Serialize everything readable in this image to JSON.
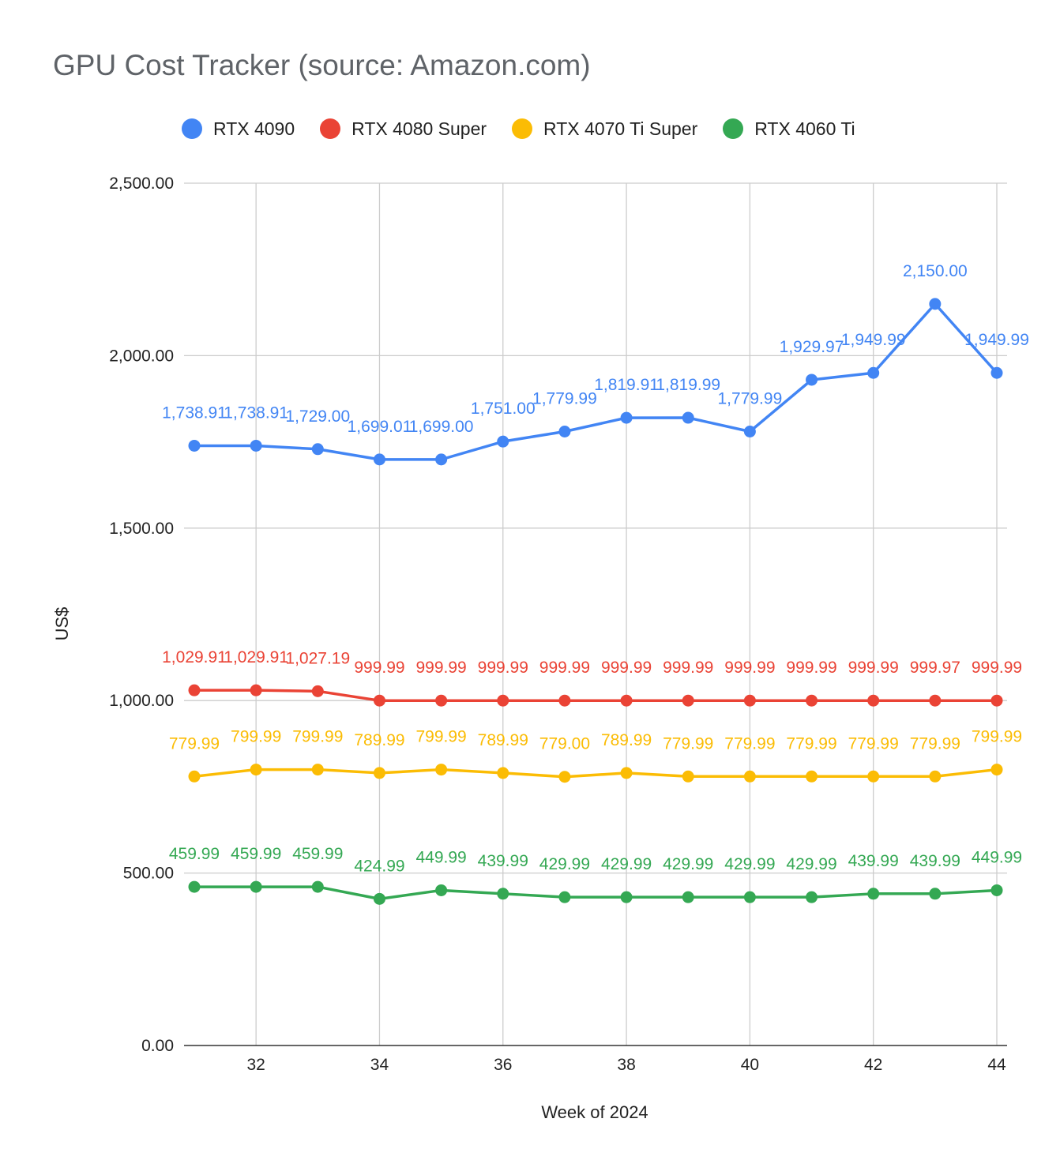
{
  "chart_data": {
    "type": "line",
    "title": "GPU Cost Tracker (source: Amazon.com)",
    "xlabel": "Week of 2024",
    "ylabel": "US$",
    "x": [
      31,
      32,
      33,
      34,
      35,
      36,
      37,
      38,
      39,
      40,
      41,
      42,
      43,
      44
    ],
    "xlim": [
      31,
      44
    ],
    "ylim": [
      0,
      2500
    ],
    "xticks": [
      32,
      34,
      36,
      38,
      40,
      42,
      44
    ],
    "xtick_labels": [
      "32",
      "34",
      "36",
      "38",
      "40",
      "42",
      "44"
    ],
    "yticks": [
      0,
      500,
      1000,
      1500,
      2000,
      2500
    ],
    "ytick_labels": [
      "0.00",
      "500.00",
      "1,000.00",
      "1,500.00",
      "2,000.00",
      "2,500.00"
    ],
    "grid": true,
    "legend_position": "top",
    "series": [
      {
        "name": "RTX 4090",
        "color": "#4285f4",
        "values": [
          1738.91,
          1738.91,
          1729.0,
          1699.01,
          1699.0,
          1751.0,
          1779.99,
          1819.91,
          1819.99,
          1779.99,
          1929.97,
          1949.99,
          2150.0,
          1949.99
        ],
        "labels": [
          "1,738.91",
          "1,738.91",
          "1,729.00",
          "1,699.01",
          "1,699.00",
          "1,751.00",
          "1,779.99",
          "1,819.91",
          "1,819.99",
          "1,779.99",
          "1,929.97",
          "1,949.99",
          "2,150.00",
          "1,949.99"
        ]
      },
      {
        "name": "RTX 4080 Super",
        "color": "#ea4335",
        "values": [
          1029.91,
          1029.91,
          1027.19,
          999.99,
          999.99,
          999.99,
          999.99,
          999.99,
          999.99,
          999.99,
          999.99,
          999.99,
          999.97,
          999.99
        ],
        "labels": [
          "1,029.91",
          "1,029.91",
          "1,027.19",
          "999.99",
          "999.99",
          "999.99",
          "999.99",
          "999.99",
          "999.99",
          "999.99",
          "999.99",
          "999.99",
          "999.97",
          "999.99"
        ]
      },
      {
        "name": "RTX 4070 Ti Super",
        "color": "#fbbc04",
        "values": [
          779.99,
          799.99,
          799.99,
          789.99,
          799.99,
          789.99,
          779.0,
          789.99,
          779.99,
          779.99,
          779.99,
          779.99,
          779.99,
          799.99
        ],
        "labels": [
          "779.99",
          "799.99",
          "799.99",
          "789.99",
          "799.99",
          "789.99",
          "779.00",
          "789.99",
          "779.99",
          "779.99",
          "779.99",
          "779.99",
          "779.99",
          "799.99"
        ]
      },
      {
        "name": "RTX 4060 Ti",
        "color": "#34a853",
        "values": [
          459.99,
          459.99,
          459.99,
          424.99,
          449.99,
          439.99,
          429.99,
          429.99,
          429.99,
          429.99,
          429.99,
          439.99,
          439.99,
          449.99
        ],
        "labels": [
          "459.99",
          "459.99",
          "459.99",
          "424.99",
          "449.99",
          "439.99",
          "429.99",
          "429.99",
          "429.99",
          "429.99",
          "429.99",
          "439.99",
          "439.99",
          "449.99"
        ]
      }
    ]
  }
}
